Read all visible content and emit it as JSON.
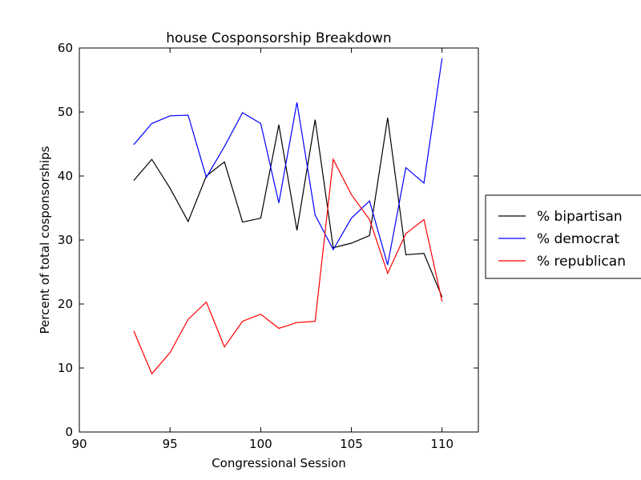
{
  "chart_data": {
    "type": "line",
    "title": "house Cosponsorship Breakdown",
    "xlabel": "Congressional Session",
    "ylabel": "Percent of total cosponsorships",
    "xlim": [
      90,
      112
    ],
    "ylim": [
      0,
      60
    ],
    "xticks": [
      90,
      95,
      100,
      105,
      110
    ],
    "yticks": [
      0,
      10,
      20,
      30,
      40,
      50,
      60
    ],
    "x": [
      93,
      94,
      95,
      96,
      97,
      98,
      99,
      100,
      101,
      102,
      103,
      104,
      105,
      106,
      107,
      108,
      109,
      110
    ],
    "grid": false,
    "legend_position": "right (outside, clipped)",
    "series": [
      {
        "name": "% bipartisan",
        "color": "#000000",
        "values": [
          39.3,
          42.6,
          38.1,
          32.9,
          40.0,
          42.2,
          32.8,
          33.4,
          48.0,
          31.5,
          48.8,
          28.8,
          29.5,
          30.7,
          49.1,
          27.7,
          27.9,
          21.1
        ]
      },
      {
        "name": "% democrat",
        "color": "#0000ff",
        "values": [
          44.9,
          48.2,
          49.4,
          49.5,
          39.8,
          44.6,
          49.9,
          48.2,
          35.8,
          51.5,
          33.9,
          28.5,
          33.4,
          36.1,
          26.1,
          41.3,
          38.9,
          58.4
        ]
      },
      {
        "name": "% republican",
        "color": "#ff0000",
        "values": [
          15.8,
          9.1,
          12.4,
          17.6,
          20.3,
          13.3,
          17.3,
          18.4,
          16.2,
          17.1,
          17.3,
          42.6,
          37.1,
          33.2,
          24.8,
          31.0,
          33.2,
          20.4
        ]
      }
    ]
  }
}
